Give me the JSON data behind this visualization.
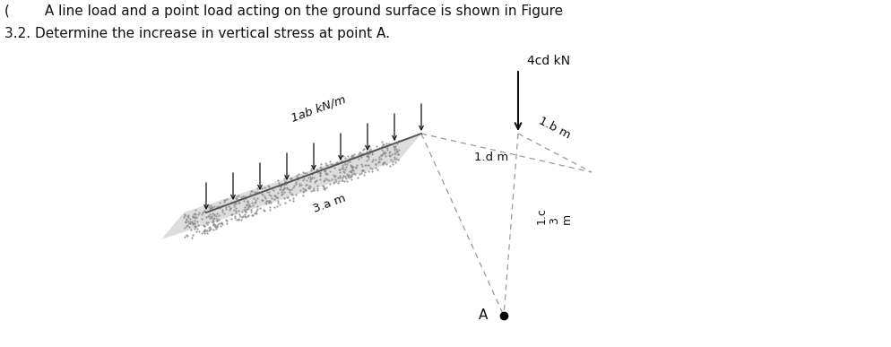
{
  "title_line1": "(        A line load and a point load acting on the ground surface is shown in Figure",
  "title_line2": "3.2. Determine the increase in vertical stress at point A.",
  "line_load_label": "1ab kN/m",
  "point_load_label": "4cd kN",
  "dist_3a": "3.a m",
  "dist_1b": "1.b m",
  "dist_1d": "1.d m",
  "dist_c3m": "1.c\n3\nm",
  "point_A_label": "A",
  "bg_color": "#ffffff",
  "ground_color": "#555555",
  "arrow_color": "#111111",
  "dashed_color": "#999999",
  "text_color": "#111111",
  "dot_color": "#aaaaaa",
  "fig_w": 9.95,
  "fig_h": 3.87
}
